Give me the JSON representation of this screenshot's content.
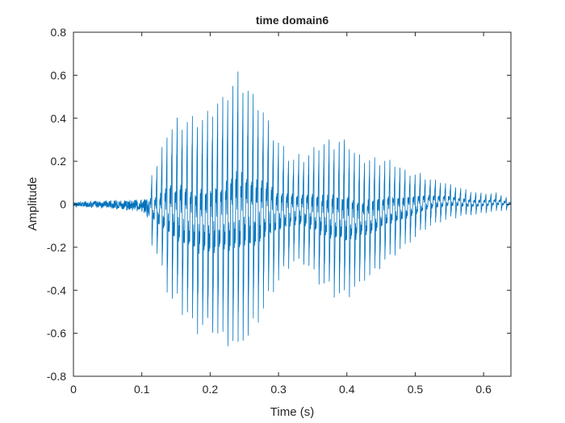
{
  "chart_data": {
    "type": "line",
    "title": "time domain6",
    "xlabel": "Time (s)",
    "ylabel": "Amplitude",
    "xlim": [
      0,
      0.64
    ],
    "ylim": [
      -0.8,
      0.8
    ],
    "xticks": [
      0,
      0.1,
      0.2,
      0.3,
      0.4,
      0.5,
      0.6
    ],
    "xtick_labels": [
      "0",
      "0.1",
      "0.2",
      "0.3",
      "0.4",
      "0.5",
      "0.6"
    ],
    "yticks": [
      -0.8,
      -0.6,
      -0.4,
      -0.2,
      0,
      0.2,
      0.4,
      0.6,
      0.8
    ],
    "ytick_labels": [
      "-0.8",
      "-0.6",
      "-0.4",
      "-0.2",
      "0",
      "0.2",
      "0.4",
      "0.6",
      "0.8"
    ],
    "grid": false,
    "line_color": "#0072BD",
    "series": [
      {
        "envelope": {
          "t": [
            0,
            0.05,
            0.1,
            0.12,
            0.14,
            0.16,
            0.18,
            0.2,
            0.22,
            0.24,
            0.26,
            0.28,
            0.3,
            0.32,
            0.34,
            0.36,
            0.38,
            0.4,
            0.42,
            0.44,
            0.46,
            0.48,
            0.5,
            0.52,
            0.55,
            0.58,
            0.6,
            0.62,
            0.64
          ],
          "upper": [
            0.04,
            0.06,
            0.09,
            0.2,
            0.42,
            0.48,
            0.5,
            0.53,
            0.6,
            0.72,
            0.6,
            0.5,
            0.35,
            0.25,
            0.27,
            0.32,
            0.36,
            0.36,
            0.28,
            0.25,
            0.24,
            0.2,
            0.17,
            0.14,
            0.11,
            0.07,
            0.06,
            0.06,
            0.03
          ],
          "lower": [
            -0.04,
            -0.06,
            -0.1,
            -0.25,
            -0.48,
            -0.58,
            -0.66,
            -0.68,
            -0.72,
            -0.78,
            -0.68,
            -0.55,
            -0.42,
            -0.3,
            -0.32,
            -0.42,
            -0.48,
            -0.5,
            -0.42,
            -0.36,
            -0.3,
            -0.24,
            -0.18,
            -0.12,
            -0.08,
            -0.06,
            -0.05,
            -0.04,
            -0.03
          ]
        }
      }
    ]
  }
}
